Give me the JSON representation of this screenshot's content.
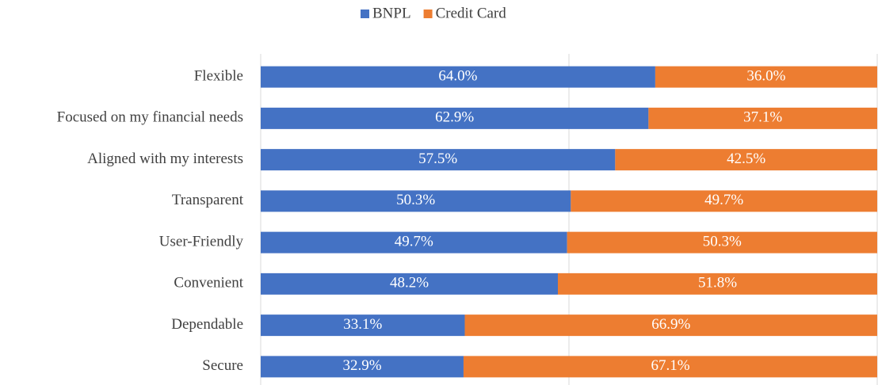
{
  "chart_data": {
    "type": "stacked_bar_horizontal_100",
    "categories": [
      "Flexible",
      "Focused on my financial needs",
      "Aligned with my interests",
      "Transparent",
      "User-Friendly",
      "Convenient",
      "Dependable",
      "Secure"
    ],
    "series": [
      {
        "name": "BNPL",
        "color": "#4472c4",
        "values": [
          64.0,
          62.9,
          57.5,
          50.3,
          49.7,
          48.2,
          33.1,
          32.9
        ],
        "value_labels": [
          "64.0%",
          "62.9%",
          "57.5%",
          "50.3%",
          "49.7%",
          "48.2%",
          "33.1%",
          "32.9%"
        ]
      },
      {
        "name": "Credit Card",
        "color": "#ed7d31",
        "values": [
          36.0,
          37.1,
          42.5,
          49.7,
          50.3,
          51.8,
          66.9,
          67.1
        ],
        "value_labels": [
          "36.0%",
          "37.1%",
          "42.5%",
          "49.7%",
          "50.3%",
          "51.8%",
          "66.9%",
          "67.1%"
        ]
      }
    ],
    "xlim": [
      0,
      100
    ],
    "xticks": [
      0,
      50,
      100
    ],
    "grid": true,
    "legend": "top"
  }
}
